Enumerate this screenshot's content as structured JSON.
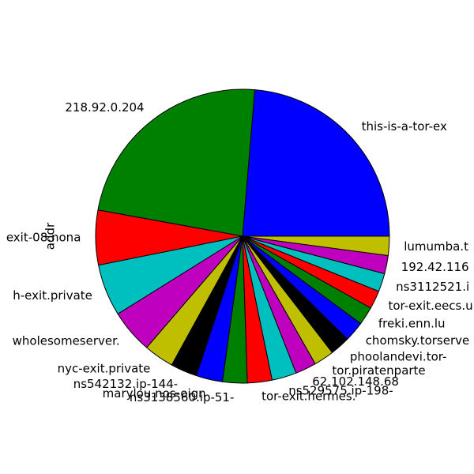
{
  "chart_data": {
    "type": "pie",
    "ylabel": "addr",
    "start_angle_deg": 0,
    "direction": "counterclockwise",
    "slices": [
      {
        "label": "this-is-a-tor-ex",
        "value": 23.6,
        "color": "#0000ff"
      },
      {
        "label": "218.92.0.204",
        "value": 23.4,
        "color": "#008000"
      },
      {
        "label": "exit-08.nona",
        "value": 6.0,
        "color": "#ff0000"
      },
      {
        "label": "h-exit.private",
        "value": 5.7,
        "color": "#00bfbf"
      },
      {
        "label": "wholesomeserver.",
        "value": 4.8,
        "color": "#bf00bf"
      },
      {
        "label": "nyc-exit.private",
        "value": 3.3,
        "color": "#bfbf00"
      },
      {
        "label": "ns542132.ip-144-",
        "value": 2.9,
        "color": "#000000"
      },
      {
        "label": "marylou.nos-oign",
        "value": 2.9,
        "color": "#0000ff"
      },
      {
        "label": "ns3138560.ip-51-",
        "value": 2.7,
        "color": "#008000"
      },
      {
        "label": "tor-exit.hermes.",
        "value": 2.7,
        "color": "#ff0000"
      },
      {
        "label": "ns529575.ip-198-",
        "value": 2.7,
        "color": "#00bfbf"
      },
      {
        "label": "62.102.148.68",
        "value": 2.3,
        "color": "#bf00bf"
      },
      {
        "label": "tor.piratenparte",
        "value": 2.2,
        "color": "#bfbf00"
      },
      {
        "label": "phoolandevi.tor-",
        "value": 2.2,
        "color": "#000000"
      },
      {
        "label": "chomsky.torserve",
        "value": 2.2,
        "color": "#0000ff"
      },
      {
        "label": "freki.enn.lu",
        "value": 2.0,
        "color": "#008000"
      },
      {
        "label": "tor-exit.eecs.u",
        "value": 2.0,
        "color": "#ff0000"
      },
      {
        "label": "ns3112521.i",
        "value": 2.0,
        "color": "#00bfbf"
      },
      {
        "label": "192.42.116",
        "value": 2.0,
        "color": "#bf00bf"
      },
      {
        "label": "lumumba.t",
        "value": 2.1,
        "color": "#bfbf00"
      }
    ]
  }
}
